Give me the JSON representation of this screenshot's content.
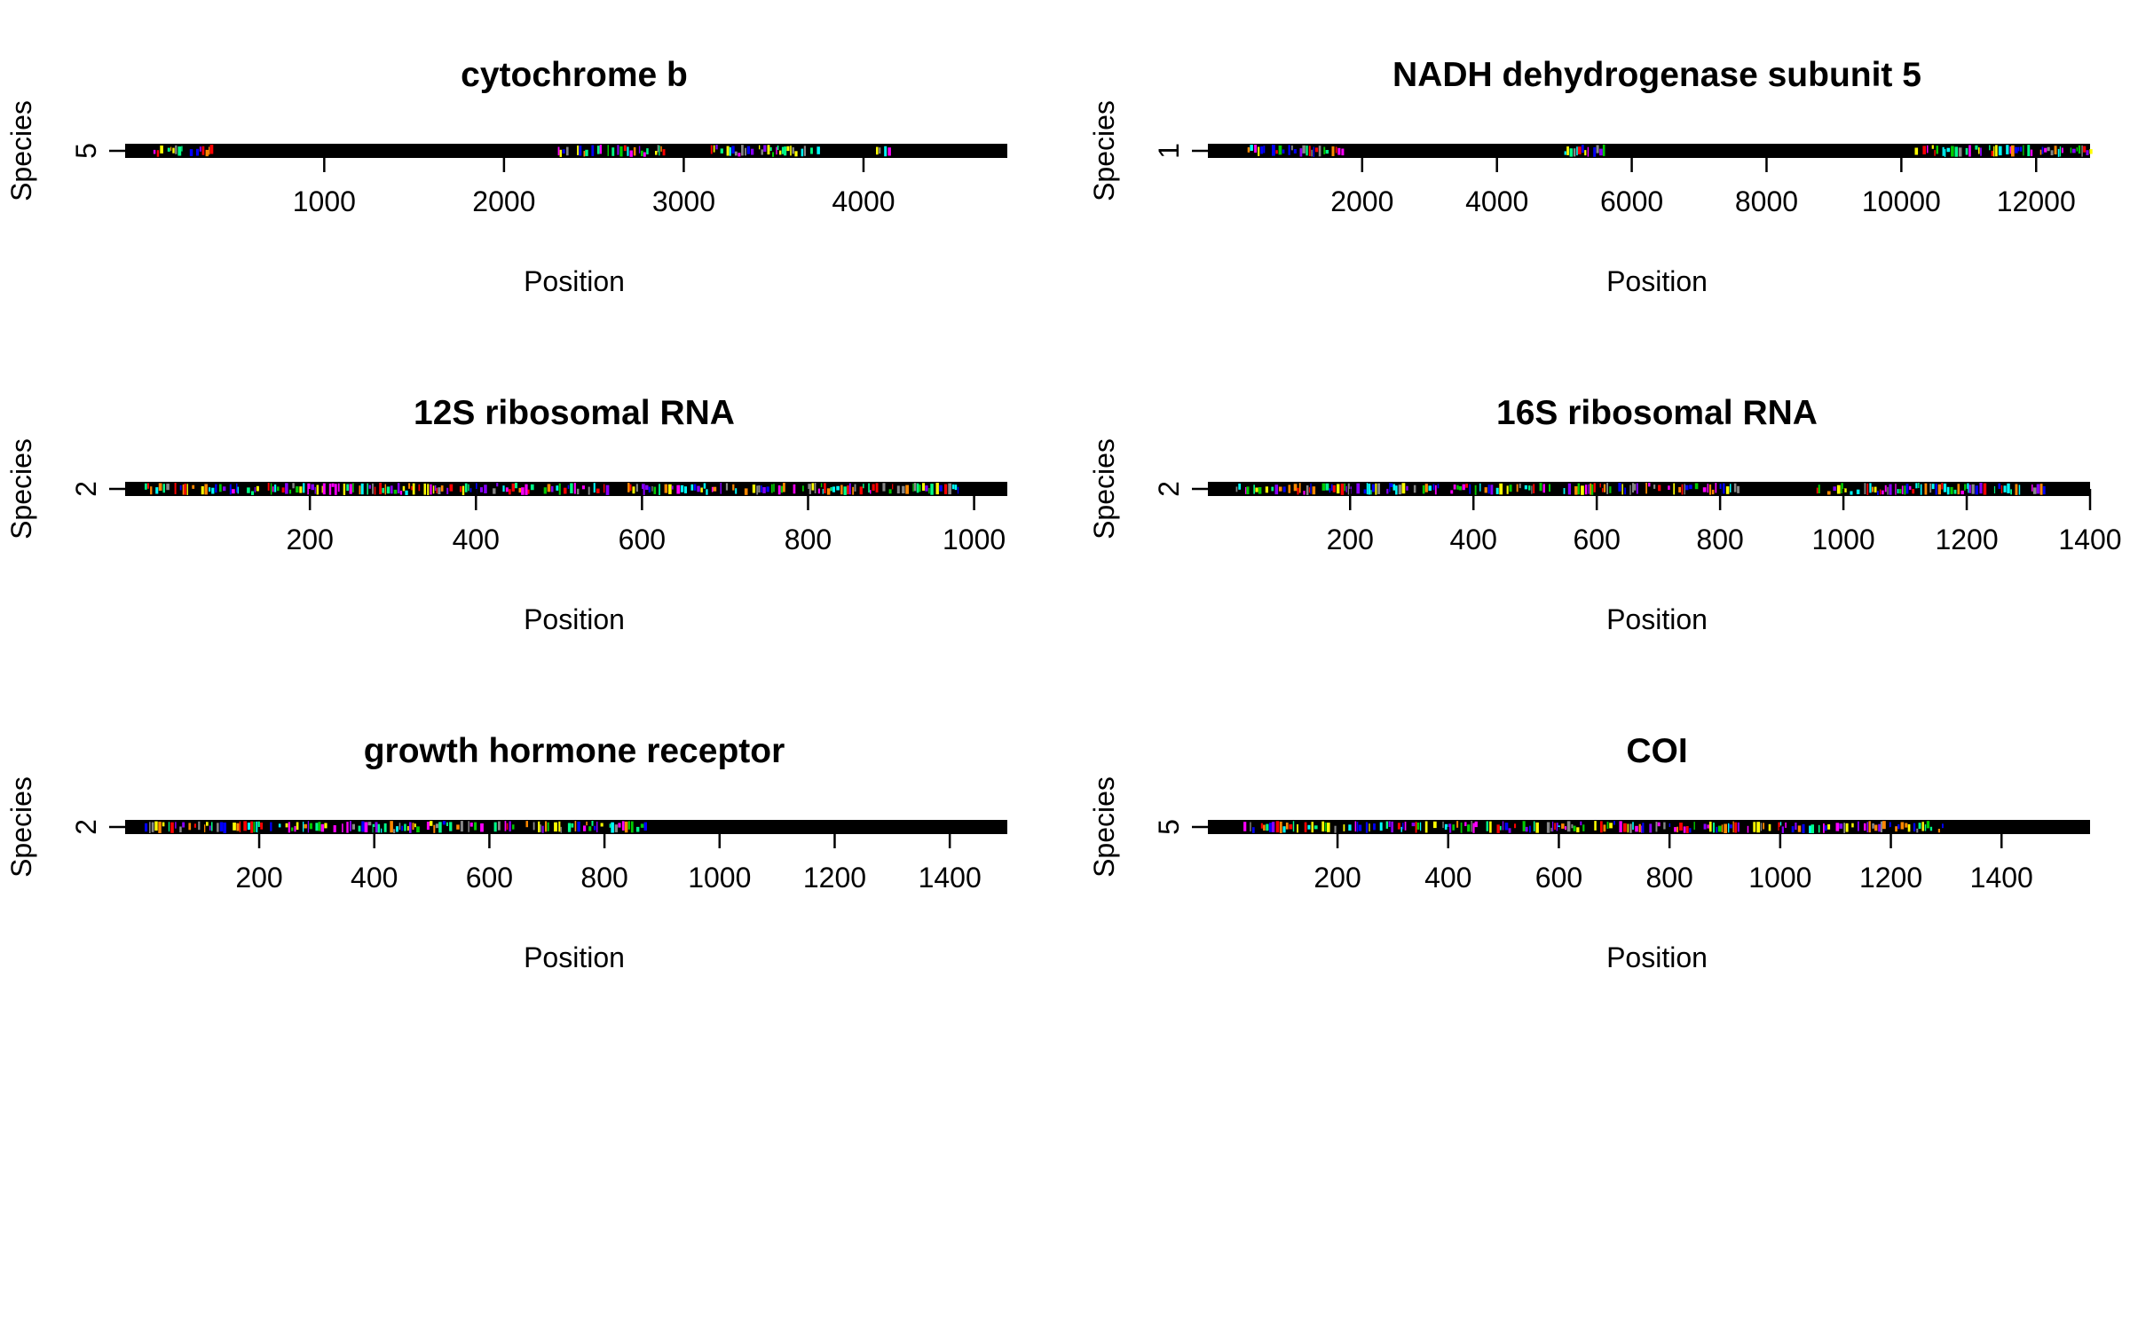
{
  "figure": {
    "alignment_colors": [
      "#ff0000",
      "#00cc00",
      "#0000ff",
      "#ffff00",
      "#ff00ff",
      "#00ffff",
      "#ff8800",
      "#8800ff",
      "#00ff88",
      "#888888"
    ],
    "axis_color": "#000000",
    "background": "#ffffff"
  },
  "chart_data": [
    {
      "type": "heatmap",
      "title": "cytochrome b",
      "xlabel": "Position",
      "ylabel": "Species",
      "xlim": [
        1,
        4800
      ],
      "x_ticks": [
        1000,
        2000,
        3000,
        4000
      ],
      "y_ticks": [
        "5"
      ],
      "colored_regions": [
        [
          50,
          380
        ],
        [
          2300,
          2900
        ],
        [
          3150,
          3750
        ],
        [
          4050,
          4150
        ]
      ],
      "grid": false
    },
    {
      "type": "heatmap",
      "title": "NADH dehydrogenase subunit 5",
      "xlabel": "Position",
      "ylabel": "Species",
      "xlim": [
        1,
        12800
      ],
      "x_ticks": [
        2000,
        4000,
        6000,
        8000,
        10000,
        12000
      ],
      "y_ticks": [
        "1"
      ],
      "colored_regions": [
        [
          300,
          1800
        ],
        [
          5000,
          5600
        ],
        [
          10200,
          12800
        ]
      ],
      "grid": false
    },
    {
      "type": "heatmap",
      "title": "12S ribosomal RNA",
      "xlabel": "Position",
      "ylabel": "Species",
      "xlim": [
        1,
        1040
      ],
      "x_ticks": [
        200,
        400,
        600,
        800,
        1000
      ],
      "y_ticks": [
        "2"
      ],
      "colored_regions": [
        [
          1,
          980
        ]
      ],
      "grid": false
    },
    {
      "type": "heatmap",
      "title": "16S ribosomal RNA",
      "xlabel": "Position",
      "ylabel": "Species",
      "xlim": [
        1,
        1400
      ],
      "x_ticks": [
        200,
        400,
        600,
        800,
        1000,
        1200,
        1400
      ],
      "y_ticks": [
        "2"
      ],
      "colored_regions": [
        [
          1,
          830
        ],
        [
          950,
          1330
        ]
      ],
      "grid": false
    },
    {
      "type": "heatmap",
      "title": "growth hormone receptor",
      "xlabel": "Position",
      "ylabel": "Species",
      "xlim": [
        1,
        1500
      ],
      "x_ticks": [
        200,
        400,
        600,
        800,
        1000,
        1200,
        1400
      ],
      "y_ticks": [
        "2"
      ],
      "colored_regions": [
        [
          1,
          870
        ]
      ],
      "grid": false
    },
    {
      "type": "heatmap",
      "title": "COI",
      "xlabel": "Position",
      "ylabel": "Species",
      "xlim": [
        1,
        1560
      ],
      "x_ticks": [
        200,
        400,
        600,
        800,
        1000,
        1200,
        1400
      ],
      "y_ticks": [
        "5"
      ],
      "colored_regions": [
        [
          30,
          1300
        ]
      ],
      "grid": false
    }
  ]
}
